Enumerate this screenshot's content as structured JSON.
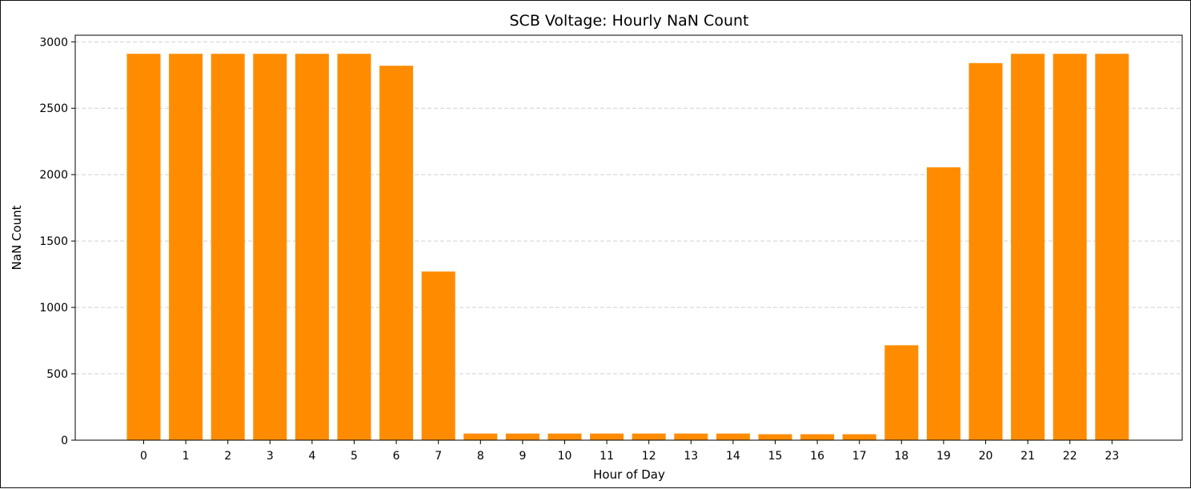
{
  "chart_data": {
    "type": "bar",
    "title": "SCB Voltage: Hourly NaN Count",
    "xlabel": "Hour of Day",
    "ylabel": "NaN Count",
    "categories": [
      "0",
      "1",
      "2",
      "3",
      "4",
      "5",
      "6",
      "7",
      "8",
      "9",
      "10",
      "11",
      "12",
      "13",
      "14",
      "15",
      "16",
      "17",
      "18",
      "19",
      "20",
      "21",
      "22",
      "23"
    ],
    "values": [
      2910,
      2910,
      2910,
      2910,
      2910,
      2910,
      2820,
      1270,
      50,
      50,
      50,
      50,
      50,
      50,
      50,
      45,
      45,
      45,
      715,
      2055,
      2840,
      2910,
      2910,
      2910
    ],
    "ylim": [
      0,
      3000
    ],
    "yticks": [
      0,
      500,
      1000,
      1500,
      2000,
      2500,
      3000
    ],
    "grid": "y-dashed",
    "bar_color": "#ff8c00"
  }
}
